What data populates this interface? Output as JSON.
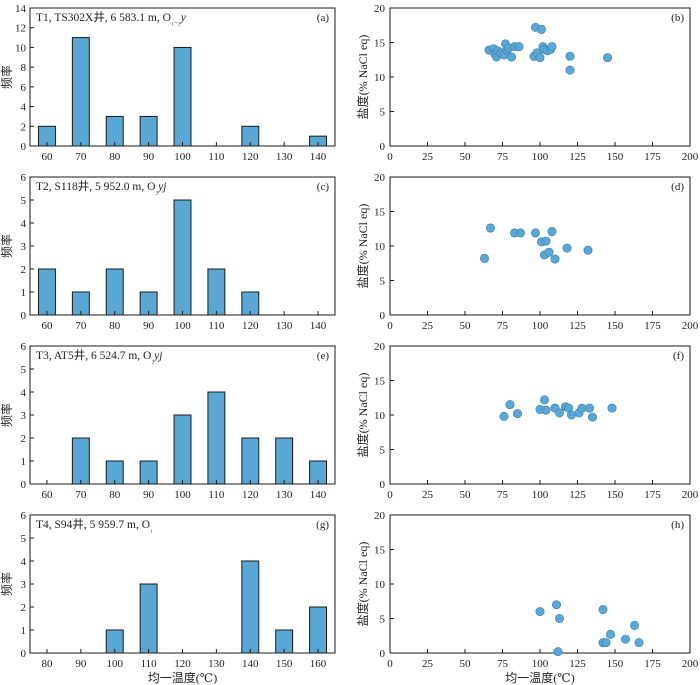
{
  "figure": {
    "xlabel_hist": "均一温度(℃)",
    "xlabel_scatter": "均一温度(℃)",
    "ylabel_hist": "频率",
    "ylabel_scatter": "盐度(% NaCl eq)"
  },
  "chart_data": [
    {
      "id": "a",
      "type": "bar",
      "title": "T1, TS302X井, 6 583.1 m, O",
      "formation": "₁₋₂y",
      "panel_label": "(a)",
      "categories": [
        "60",
        "70",
        "80",
        "90",
        "100",
        "110",
        "120",
        "130",
        "140"
      ],
      "values": [
        2,
        11,
        3,
        3,
        10,
        0,
        2,
        0,
        1
      ],
      "ylim": [
        0,
        14
      ],
      "yticks": [
        0,
        2,
        4,
        6,
        8,
        10,
        12,
        14
      ],
      "xlabel": "",
      "ylabel": "频率",
      "bar_color": "#5aa7d6"
    },
    {
      "id": "b",
      "type": "scatter",
      "panel_label": "(b)",
      "xlim": [
        0,
        200
      ],
      "ylim": [
        0,
        20
      ],
      "xticks": [
        0,
        25,
        50,
        75,
        100,
        125,
        150,
        175,
        200
      ],
      "yticks": [
        0,
        5,
        10,
        15,
        20
      ],
      "xlabel": "",
      "ylabel": "盐度(% NaCl eq)",
      "point_color": "#5aa7d6",
      "points": [
        [
          66,
          13.9
        ],
        [
          69,
          14.1
        ],
        [
          70,
          13.3
        ],
        [
          71,
          12.9
        ],
        [
          72,
          13.8
        ],
        [
          74,
          13.5
        ],
        [
          76,
          13.2
        ],
        [
          77,
          14.8
        ],
        [
          78,
          13.9
        ],
        [
          79,
          14.2
        ],
        [
          81,
          12.9
        ],
        [
          83,
          14.4
        ],
        [
          86,
          14.4
        ],
        [
          96,
          13.0
        ],
        [
          97,
          17.2
        ],
        [
          98,
          13.5
        ],
        [
          100,
          12.8
        ],
        [
          101,
          16.9
        ],
        [
          102,
          14.4
        ],
        [
          103,
          14.0
        ],
        [
          105,
          13.8
        ],
        [
          107,
          14.0
        ],
        [
          108,
          14.4
        ],
        [
          120,
          11.0
        ],
        [
          120,
          13.0
        ],
        [
          145,
          12.8
        ]
      ]
    },
    {
      "id": "c",
      "type": "bar",
      "title": "T2, S118井, 5 952.0 m, O",
      "formation": "₂yj",
      "panel_label": "(c)",
      "categories": [
        "60",
        "70",
        "80",
        "90",
        "100",
        "110",
        "120",
        "130",
        "140"
      ],
      "values": [
        2,
        1,
        2,
        1,
        5,
        2,
        1,
        0,
        0
      ],
      "ylim": [
        0,
        6
      ],
      "yticks": [
        0,
        1,
        2,
        3,
        4,
        5,
        6
      ],
      "xlabel": "",
      "ylabel": "频率",
      "bar_color": "#5aa7d6"
    },
    {
      "id": "d",
      "type": "scatter",
      "panel_label": "(d)",
      "xlim": [
        0,
        200
      ],
      "ylim": [
        0,
        20
      ],
      "xticks": [
        0,
        25,
        50,
        75,
        100,
        125,
        150,
        175,
        200
      ],
      "yticks": [
        0,
        5,
        10,
        15,
        20
      ],
      "xlabel": "",
      "ylabel": "盐度(% NaCl eq)",
      "point_color": "#5aa7d6",
      "points": [
        [
          63,
          8.2
        ],
        [
          67,
          12.6
        ],
        [
          83,
          11.9
        ],
        [
          87,
          11.9
        ],
        [
          97,
          11.9
        ],
        [
          101,
          10.6
        ],
        [
          103,
          8.7
        ],
        [
          104,
          10.7
        ],
        [
          106,
          9.1
        ],
        [
          108,
          12.1
        ],
        [
          110,
          8.1
        ],
        [
          118,
          9.7
        ],
        [
          132,
          9.4
        ]
      ]
    },
    {
      "id": "e",
      "type": "bar",
      "title": "T3, AT5井, 6 524.7 m, O",
      "formation": "₂yj",
      "panel_label": "(e)",
      "categories": [
        "60",
        "70",
        "80",
        "90",
        "100",
        "110",
        "120",
        "130",
        "140"
      ],
      "values": [
        0,
        2,
        1,
        1,
        3,
        4,
        2,
        2,
        1
      ],
      "ylim": [
        0,
        6
      ],
      "yticks": [
        0,
        1,
        2,
        3,
        4,
        5,
        6
      ],
      "xlabel": "",
      "ylabel": "频率",
      "bar_color": "#5aa7d6"
    },
    {
      "id": "f",
      "type": "scatter",
      "panel_label": "(f)",
      "xlim": [
        0,
        200
      ],
      "ylim": [
        0,
        20
      ],
      "xticks": [
        0,
        25,
        50,
        75,
        100,
        125,
        150,
        175,
        200
      ],
      "yticks": [
        0,
        5,
        10,
        15,
        20
      ],
      "xlabel": "",
      "ylabel": "盐度(% NaCl eq)",
      "point_color": "#5aa7d6",
      "points": [
        [
          76,
          9.8
        ],
        [
          80,
          11.5
        ],
        [
          85,
          10.2
        ],
        [
          100,
          10.8
        ],
        [
          103,
          12.2
        ],
        [
          104,
          10.7
        ],
        [
          110,
          11.0
        ],
        [
          113,
          10.3
        ],
        [
          117,
          11.2
        ],
        [
          119,
          11.0
        ],
        [
          121,
          10.0
        ],
        [
          126,
          10.3
        ],
        [
          128,
          11.0
        ],
        [
          133,
          11.0
        ],
        [
          135,
          9.7
        ],
        [
          148,
          11.0
        ]
      ]
    },
    {
      "id": "g",
      "type": "bar",
      "title": "T4, S94井, 5 959.7 m, O",
      "formation": "₁",
      "panel_label": "(g)",
      "categories": [
        "80",
        "90",
        "100",
        "110",
        "120",
        "130",
        "140",
        "150",
        "160"
      ],
      "values": [
        0,
        0,
        1,
        3,
        0,
        0,
        4,
        1,
        2
      ],
      "ylim": [
        0,
        6
      ],
      "yticks": [
        0,
        1,
        2,
        3,
        4,
        5,
        6
      ],
      "xlabel": "均一温度(℃)",
      "ylabel": "频率",
      "bar_color": "#5aa7d6"
    },
    {
      "id": "h",
      "type": "scatter",
      "panel_label": "(h)",
      "xlim": [
        0,
        200
      ],
      "ylim": [
        0,
        20
      ],
      "xticks": [
        0,
        25,
        50,
        75,
        100,
        125,
        150,
        175,
        200
      ],
      "yticks": [
        0,
        5,
        10,
        15,
        20
      ],
      "xlabel": "均一温度(℃)",
      "ylabel": "盐度(% NaCl eq)",
      "point_color": "#5aa7d6",
      "points": [
        [
          100,
          6.0
        ],
        [
          111,
          7.0
        ],
        [
          113,
          5.0
        ],
        [
          112,
          0.2
        ],
        [
          142,
          6.3
        ],
        [
          142,
          1.5
        ],
        [
          144,
          1.5
        ],
        [
          147,
          2.7
        ],
        [
          157,
          2.0
        ],
        [
          163,
          4.0
        ],
        [
          166,
          1.5
        ]
      ]
    }
  ]
}
